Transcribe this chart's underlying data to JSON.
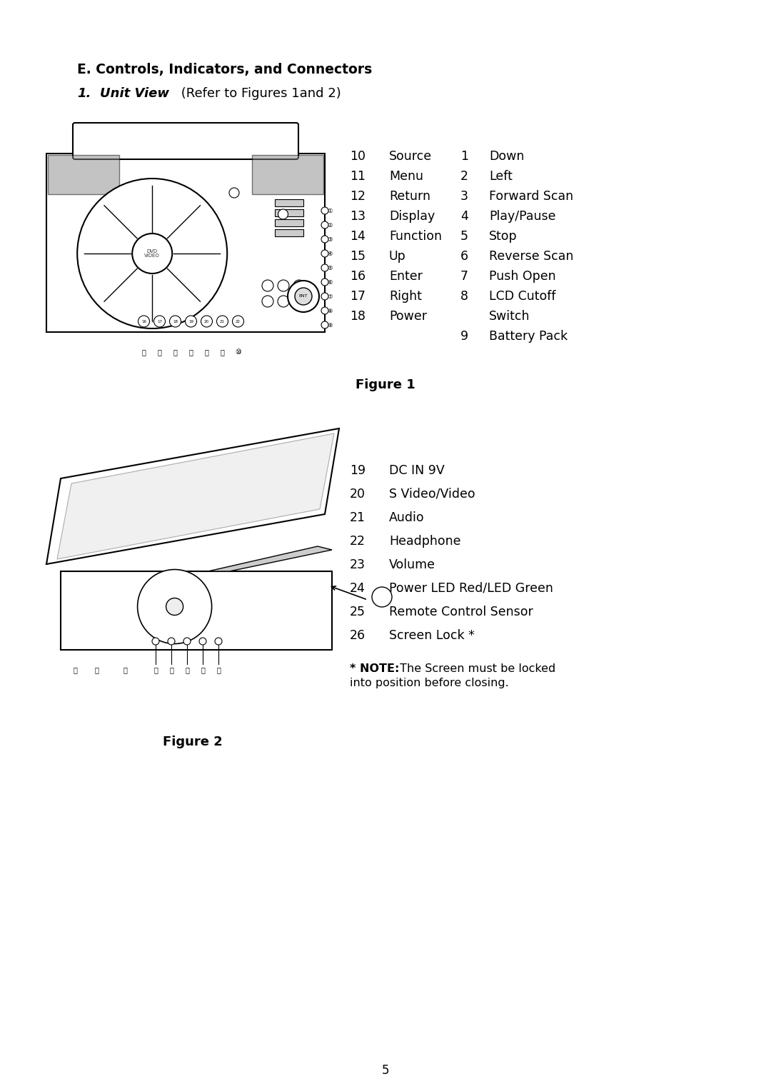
{
  "bg_color": "#ffffff",
  "page_number": "5",
  "section_title": "E. Controls, Indicators, and Connectors",
  "subsection": "1.   Unit View",
  "subsection_italic": "Unit View",
  "subsection_rest": " (Refer to Figures 1and 2)",
  "figure1_label": "Figure 1",
  "figure2_label": "Figure 2",
  "fig1_items": [
    [
      "10",
      "Source",
      "1",
      "Down"
    ],
    [
      "11",
      "Menu",
      "2",
      "Left"
    ],
    [
      "12",
      "Return",
      "3",
      "Forward Scan"
    ],
    [
      "13",
      "Display",
      "4",
      "Play/Pause"
    ],
    [
      "14",
      "Function",
      "5",
      "Stop"
    ],
    [
      "15",
      "Up",
      "6",
      "Reverse Scan"
    ],
    [
      "16",
      "Enter",
      "7",
      "Push Open"
    ],
    [
      "17",
      "Right",
      "8",
      "LCD Cutoff"
    ],
    [
      "18",
      "Power",
      "",
      "Switch"
    ],
    [
      "",
      "",
      "9",
      "Battery Pack"
    ]
  ],
  "fig2_items": [
    [
      "19",
      "DC IN 9V"
    ],
    [
      "20",
      "S Video/Video"
    ],
    [
      "21",
      "Audio"
    ],
    [
      "22",
      "Headphone"
    ],
    [
      "23",
      "Volume"
    ],
    [
      "24",
      "Power LED Red/LED Green"
    ],
    [
      "25",
      "Remote Control Sensor"
    ],
    [
      "26",
      "Screen Lock *"
    ]
  ],
  "note_bold": "* NOTE:",
  "note_text": "  The Screen must be locked\ninto position before closing."
}
